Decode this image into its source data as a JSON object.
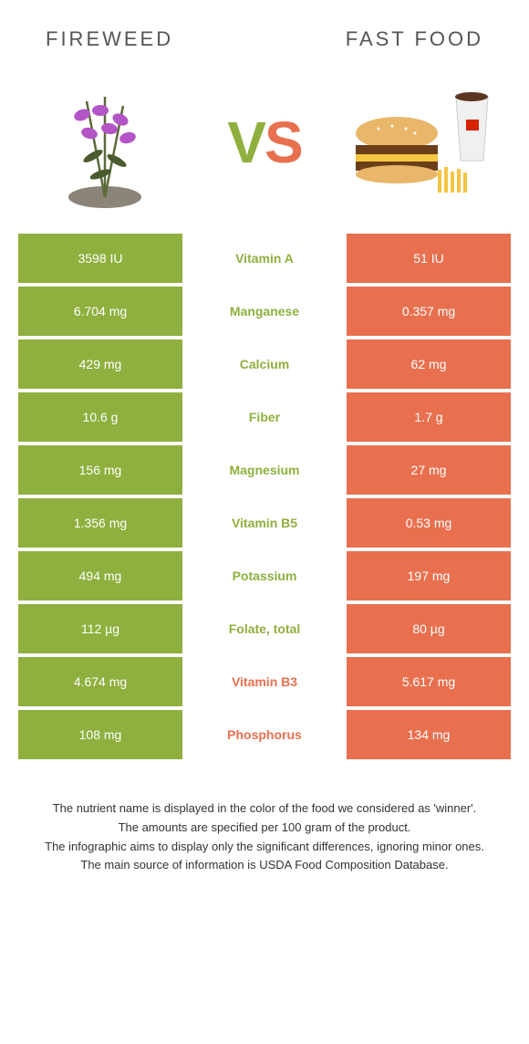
{
  "colors": {
    "green": "#8fb03e",
    "orange": "#e8704f",
    "text": "#555",
    "footer_text": "#333",
    "white": "#ffffff"
  },
  "header": {
    "left_title": "Fireweed",
    "right_title": "Fast food"
  },
  "vs_label": {
    "v": "V",
    "s": "S"
  },
  "rows": [
    {
      "left": "3598 IU",
      "nutrient": "Vitamin A",
      "right": "51 IU",
      "winner": "left"
    },
    {
      "left": "6.704 mg",
      "nutrient": "Manganese",
      "right": "0.357 mg",
      "winner": "left"
    },
    {
      "left": "429 mg",
      "nutrient": "Calcium",
      "right": "62 mg",
      "winner": "left"
    },
    {
      "left": "10.6 g",
      "nutrient": "Fiber",
      "right": "1.7 g",
      "winner": "left"
    },
    {
      "left": "156 mg",
      "nutrient": "Magnesium",
      "right": "27 mg",
      "winner": "left"
    },
    {
      "left": "1.356 mg",
      "nutrient": "Vitamin B5",
      "right": "0.53 mg",
      "winner": "left"
    },
    {
      "left": "494 mg",
      "nutrient": "Potassium",
      "right": "197 mg",
      "winner": "left"
    },
    {
      "left": "112 µg",
      "nutrient": "Folate, total",
      "right": "80 µg",
      "winner": "left"
    },
    {
      "left": "4.674 mg",
      "nutrient": "Vitamin B3",
      "right": "5.617 mg",
      "winner": "right"
    },
    {
      "left": "108 mg",
      "nutrient": "Phosphorus",
      "right": "134 mg",
      "winner": "right"
    }
  ],
  "footer": {
    "line1": "The nutrient name is displayed in the color of the food we considered as 'winner'.",
    "line2": "The amounts are specified per 100 gram of the product.",
    "line3": "The infographic aims to display only the significant differences, ignoring minor ones.",
    "line4": "The main source of information is USDA Food Composition Database."
  }
}
